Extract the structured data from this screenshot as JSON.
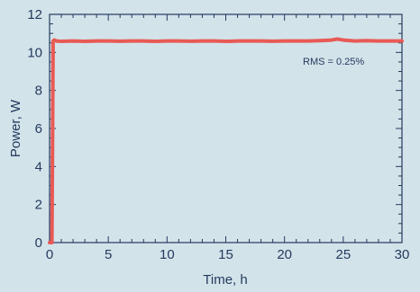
{
  "chart_data": {
    "type": "line",
    "xlabel": "Time, h",
    "ylabel": "Power, W",
    "xlim": [
      0,
      30
    ],
    "ylim": [
      0,
      12
    ],
    "xticks": [
      0,
      5,
      10,
      15,
      20,
      25,
      30
    ],
    "yticks": [
      0,
      2,
      4,
      6,
      8,
      10,
      12
    ],
    "grid": false,
    "annotation": "RMS = 0.25%",
    "series": [
      {
        "color": "#e85a55",
        "x": [
          0.0,
          0.2,
          0.25,
          0.3,
          0.4,
          0.6,
          1,
          2,
          3,
          4,
          5,
          6,
          7,
          8,
          9,
          10,
          11,
          12,
          13,
          14,
          15,
          16,
          17,
          18,
          19,
          20,
          21,
          22,
          23,
          24,
          24.5,
          25,
          26,
          27,
          28,
          29,
          30
        ],
        "y": [
          0.0,
          0.0,
          5.0,
          10.6,
          10.65,
          10.6,
          10.58,
          10.6,
          10.58,
          10.6,
          10.6,
          10.59,
          10.6,
          10.6,
          10.58,
          10.6,
          10.6,
          10.59,
          10.6,
          10.6,
          10.58,
          10.6,
          10.6,
          10.6,
          10.59,
          10.6,
          10.6,
          10.6,
          10.62,
          10.65,
          10.7,
          10.65,
          10.6,
          10.62,
          10.6,
          10.6,
          10.6
        ]
      }
    ]
  },
  "colors": {
    "background": "#d3e3ea",
    "axis": "#243a5e",
    "line": "#e85a55"
  }
}
